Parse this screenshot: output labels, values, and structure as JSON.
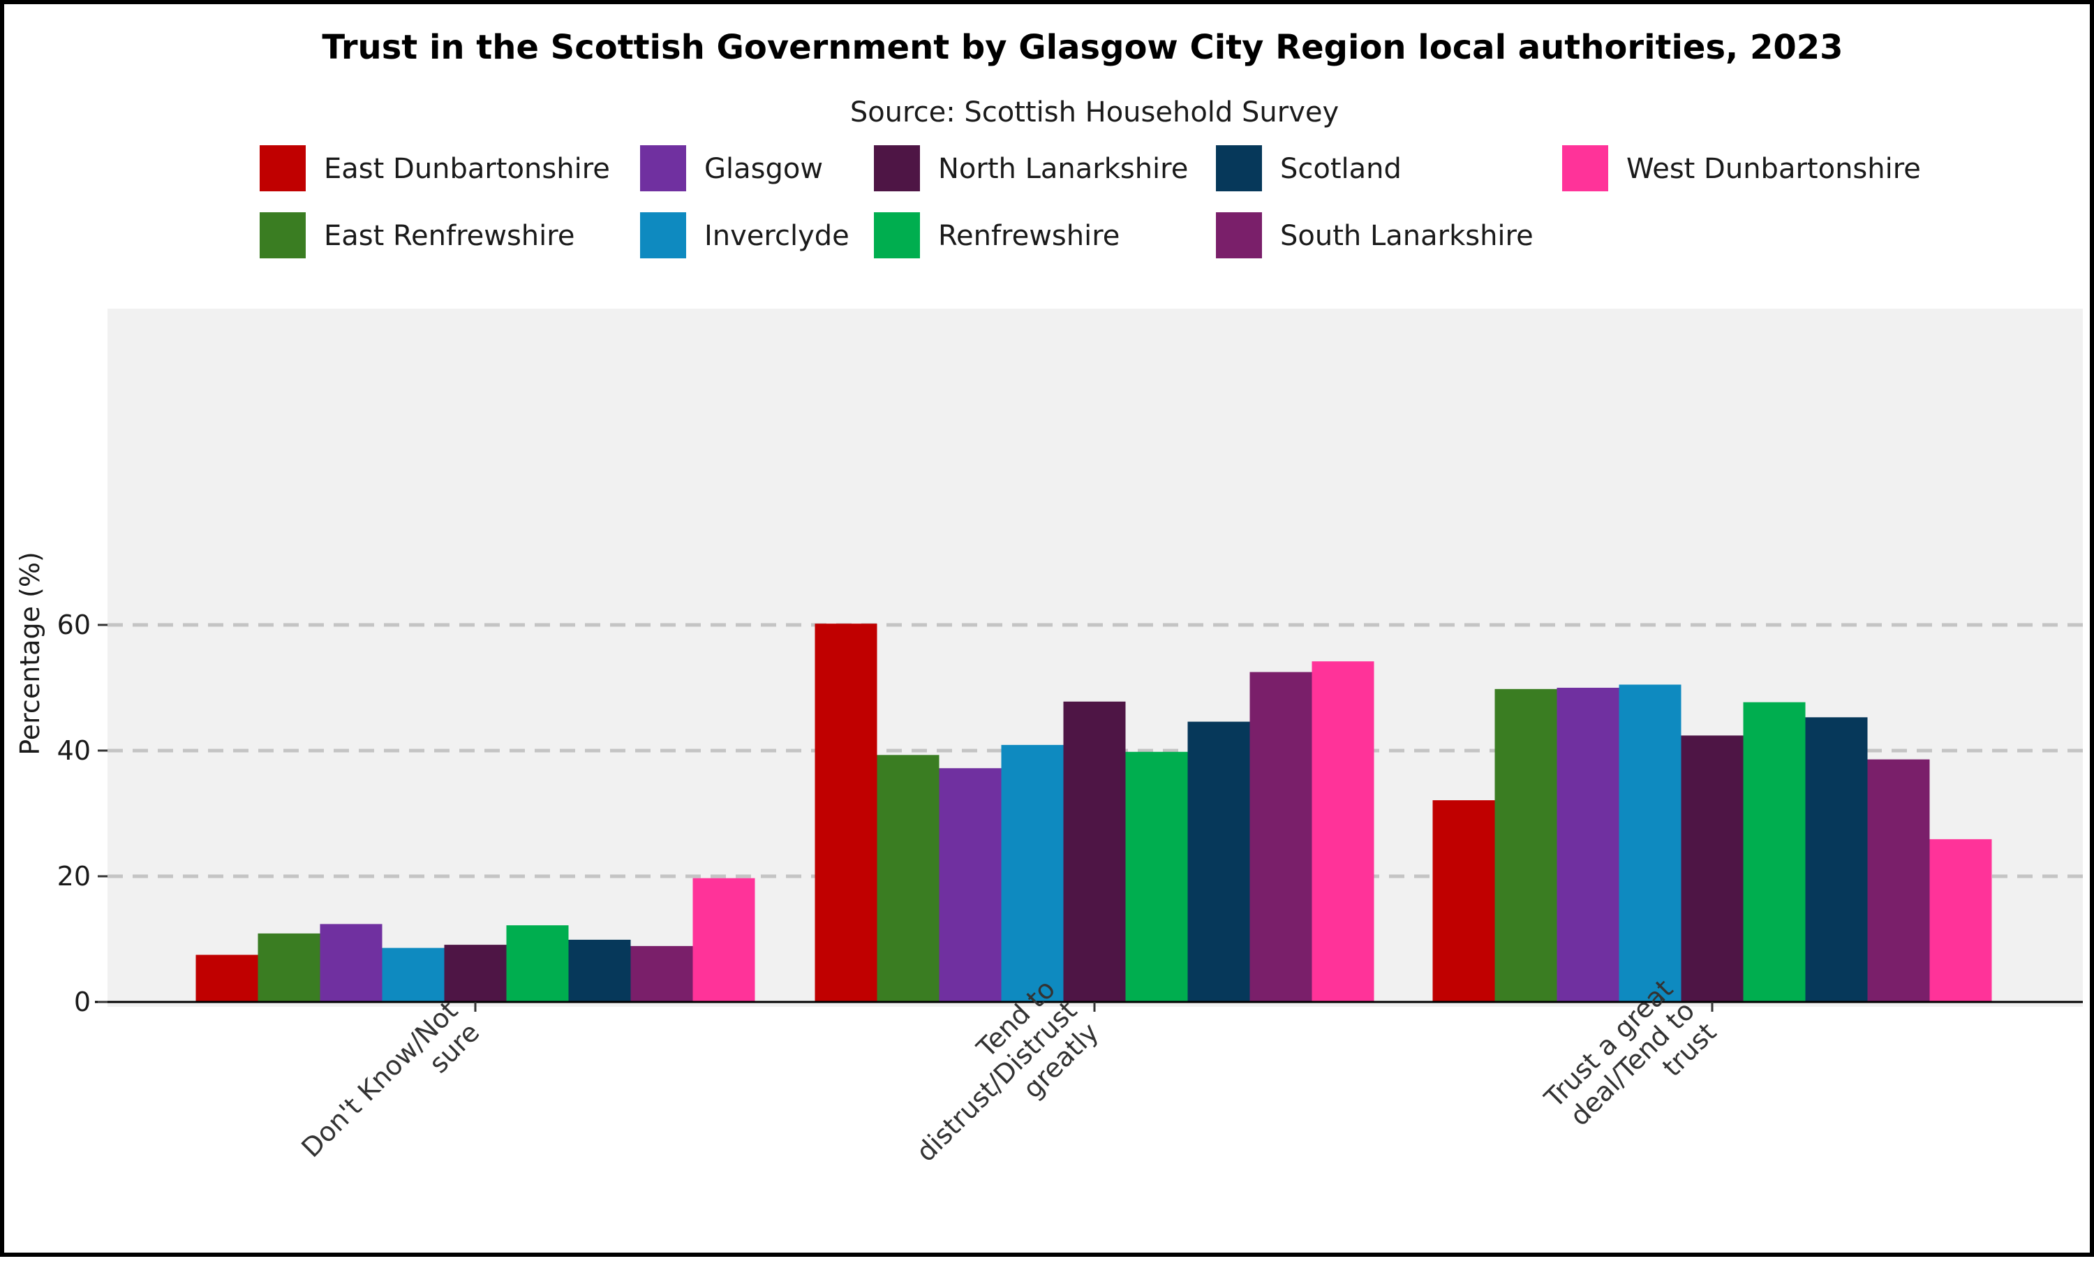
{
  "chart_data": {
    "type": "bar",
    "title": "Trust in the Scottish Government by Glasgow City Region local authorities, 2023",
    "subtitle": "Source: Scottish Household Survey",
    "xlabel": "",
    "ylabel": "Percentage  (%)",
    "ylim": [
      0,
      66
    ],
    "yticks": [
      0,
      20,
      40,
      60
    ],
    "grid": "horizontal dashed",
    "legend_position": "top",
    "categories": [
      [
        "Don't Know/Not",
        "sure"
      ],
      [
        "Tend to",
        "distrust/Distrust",
        "greatly"
      ],
      [
        "Trust a great",
        "deal/Tend to",
        "trust"
      ]
    ],
    "series": [
      {
        "name": "East Dunbartonshire",
        "color": "#C00000",
        "values": [
          7.5,
          60.2,
          32.1
        ]
      },
      {
        "name": "East Renfrewshire",
        "color": "#3A7D22",
        "values": [
          10.9,
          39.3,
          49.8
        ]
      },
      {
        "name": "Glasgow",
        "color": "#7030A0",
        "values": [
          12.4,
          37.2,
          50.0
        ]
      },
      {
        "name": "Inverclyde",
        "color": "#0E8AC0",
        "values": [
          8.6,
          40.9,
          50.5
        ]
      },
      {
        "name": "North Lanarkshire",
        "color": "#4E1545",
        "values": [
          9.1,
          47.8,
          42.4
        ]
      },
      {
        "name": "Renfrewshire",
        "color": "#00AE4F",
        "values": [
          12.2,
          39.8,
          47.7
        ]
      },
      {
        "name": "Scotland",
        "color": "#06385A",
        "values": [
          9.9,
          44.6,
          45.3
        ]
      },
      {
        "name": "South Lanarkshire",
        "color": "#7A1F6A",
        "values": [
          8.9,
          52.5,
          38.6
        ]
      },
      {
        "name": "West Dunbartonshire",
        "color": "#FF3399",
        "values": [
          19.7,
          54.2,
          25.9
        ]
      }
    ],
    "colors": {
      "panel_background": "#F1F1F1",
      "gridline": "#C4C4C4",
      "axis": "#000000"
    }
  }
}
